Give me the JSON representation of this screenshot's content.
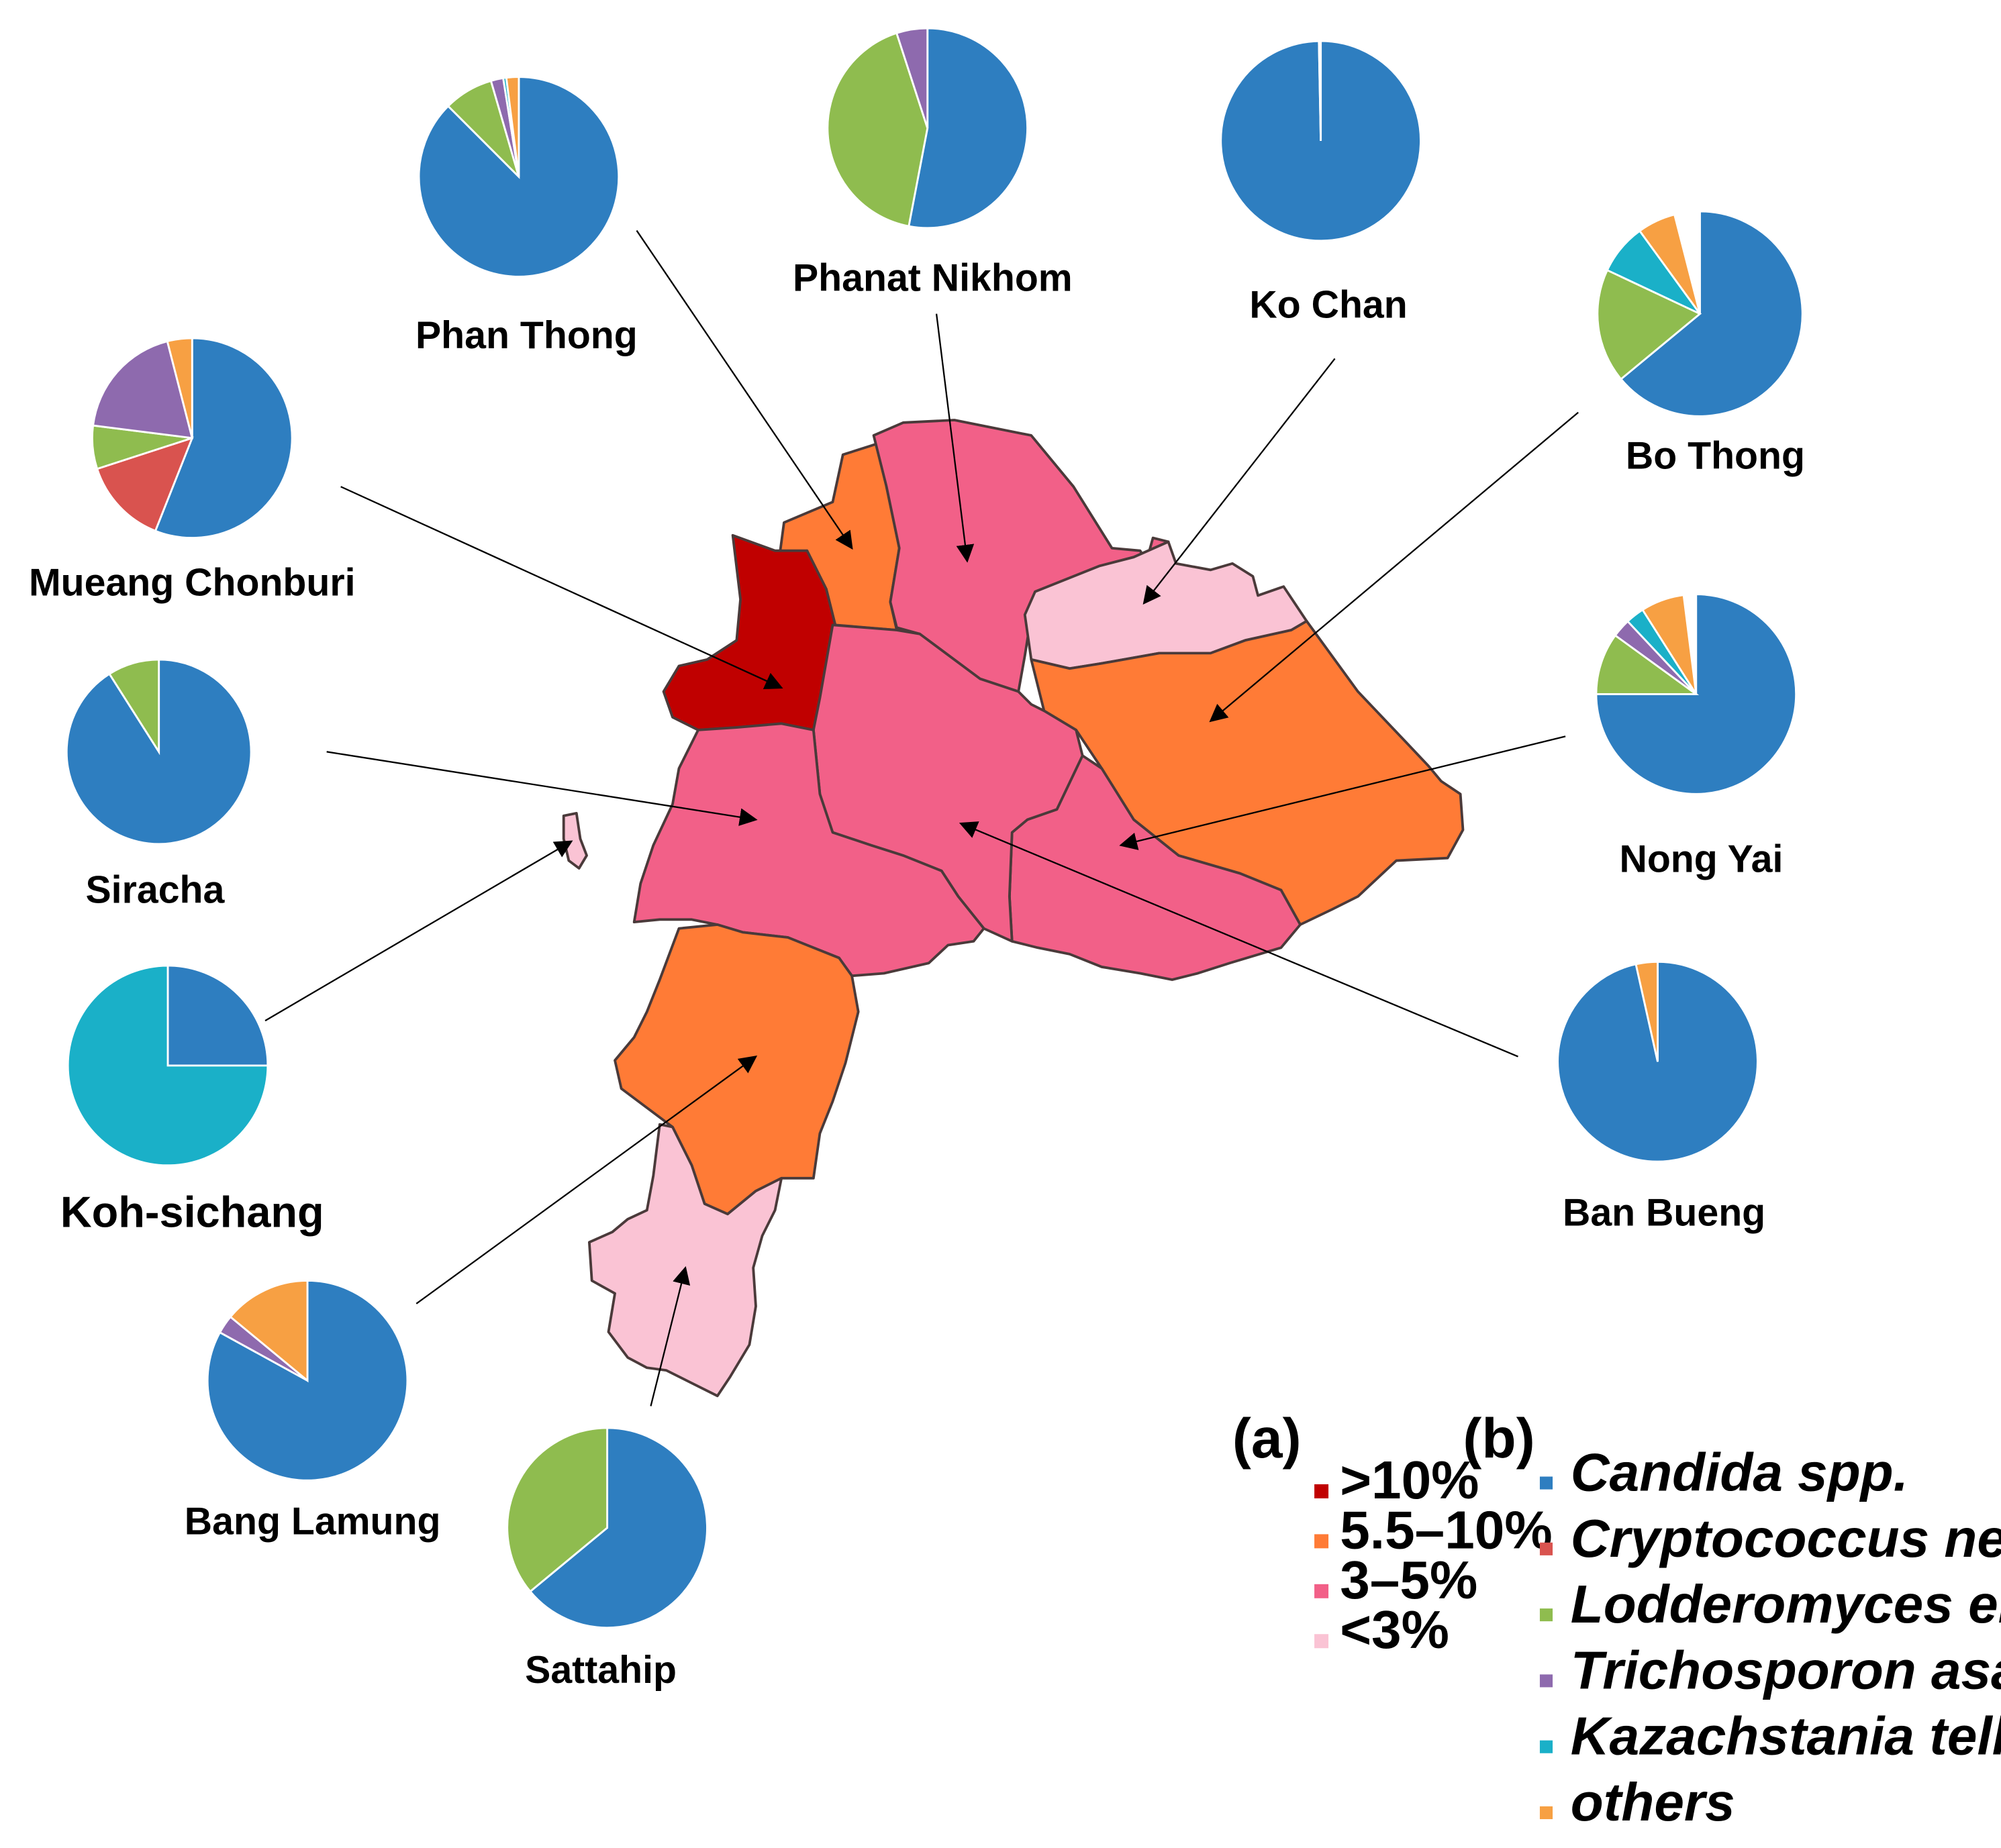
{
  "colors": {
    "candida": "#2E7EC0",
    "cryptococcus": "#D9534F",
    "lodderomyces": "#8FBC4F",
    "trichosporon": "#8E6AAE",
    "kazachstania": "#1AB0C8",
    "others": "#F7A043",
    "gt10": "#C00000",
    "p5_10": "#FF7B36",
    "p3_5": "#F26088",
    "lt3": "#FAC3D4",
    "border": "#4a3a3a"
  },
  "districts": [
    {
      "id": "phan-thong",
      "label": "Phan Thong",
      "prevalence": "5.5–10%"
    },
    {
      "id": "phanat-nikhom",
      "label": "Phanat Nikhom",
      "prevalence": "3–5%"
    },
    {
      "id": "ko-chan",
      "label": "Ko Chan",
      "prevalence": "<3%"
    },
    {
      "id": "bo-thong",
      "label": "Bo Thong",
      "prevalence": "5.5–10%"
    },
    {
      "id": "mueang-chonburi",
      "label": "Mueang Chonburi",
      "prevalence": ">10%"
    },
    {
      "id": "nong-yai",
      "label": "Nong Yai",
      "prevalence": "3–5%"
    },
    {
      "id": "siracha",
      "label": "Siracha",
      "prevalence": "3–5%"
    },
    {
      "id": "ban-bueng",
      "label": "Ban Bueng",
      "prevalence": "3–5%"
    },
    {
      "id": "koh-sichang",
      "label": "Koh-sichang",
      "prevalence": "<3%"
    },
    {
      "id": "bang-lamung",
      "label": "Bang Lamung",
      "prevalence": "5.5–10%"
    },
    {
      "id": "sattahip",
      "label": "Sattahip",
      "prevalence": "<3%"
    }
  ],
  "pies": {
    "phan-thong": [
      [
        "candida",
        0.875
      ],
      [
        "lodderomyces",
        0.08
      ],
      [
        "trichosporon",
        0.02
      ],
      [
        "kazachstania",
        0.005
      ],
      [
        "others",
        0.02
      ]
    ],
    "phanat-nikhom": [
      [
        "candida",
        0.53
      ],
      [
        "lodderomyces",
        0.42
      ],
      [
        "trichosporon",
        0.05
      ]
    ],
    "ko-chan": [
      [
        "candida",
        0.997
      ],
      [
        "others",
        0.003
      ]
    ],
    "bo-thong": [
      [
        "candida",
        0.64
      ],
      [
        "lodderomyces",
        0.18
      ],
      [
        "kazachstania",
        0.08
      ],
      [
        "others",
        0.06
      ]
    ],
    "mueang-chonburi": [
      [
        "candida",
        0.56
      ],
      [
        "cryptococcus",
        0.14
      ],
      [
        "lodderomyces",
        0.07
      ],
      [
        "trichosporon",
        0.19
      ],
      [
        "others",
        0.04
      ]
    ],
    "nong-yai": [
      [
        "candida",
        0.75
      ],
      [
        "lodderomyces",
        0.1
      ],
      [
        "trichosporon",
        0.03
      ],
      [
        "kazachstania",
        0.03
      ],
      [
        "others",
        0.07
      ]
    ],
    "siracha": [
      [
        "candida",
        0.91
      ],
      [
        "lodderomyces",
        0.09
      ]
    ],
    "ban-bueng": [
      [
        "candida",
        0.965
      ],
      [
        "others",
        0.035
      ]
    ],
    "koh-sichang": [
      [
        "candida",
        0.25
      ],
      [
        "kazachstania",
        0.75
      ]
    ],
    "bang-lamung": [
      [
        "candida",
        0.83
      ],
      [
        "trichosporon",
        0.03
      ],
      [
        "others",
        0.14
      ]
    ],
    "sattahip": [
      [
        "candida",
        0.64
      ],
      [
        "lodderomyces",
        0.36
      ]
    ]
  },
  "legend_a": {
    "heading": "(a)",
    "items": [
      {
        "label": ">10%",
        "color": "#C00000"
      },
      {
        "label": "5.5–10%",
        "color": "#FF7B36"
      },
      {
        "label": "3–5%",
        "color": "#F26088"
      },
      {
        "label": "<3%",
        "color": "#FAC3D4"
      }
    ]
  },
  "legend_b": {
    "heading": "(b)",
    "items": [
      {
        "label": "Candida spp.",
        "color": "#2E7EC0"
      },
      {
        "label": "Cryptococcus neoformans",
        "color": "#D9534F"
      },
      {
        "label": "Lodderomyces elongisporus",
        "color": "#8FBC4F"
      },
      {
        "label": "Trichosporon asahii",
        "color": "#8E6AAE"
      },
      {
        "label": "Kazachstania telluris",
        "color": "#1AB0C8"
      },
      {
        "label": "others",
        "color": "#F7A043"
      }
    ]
  }
}
